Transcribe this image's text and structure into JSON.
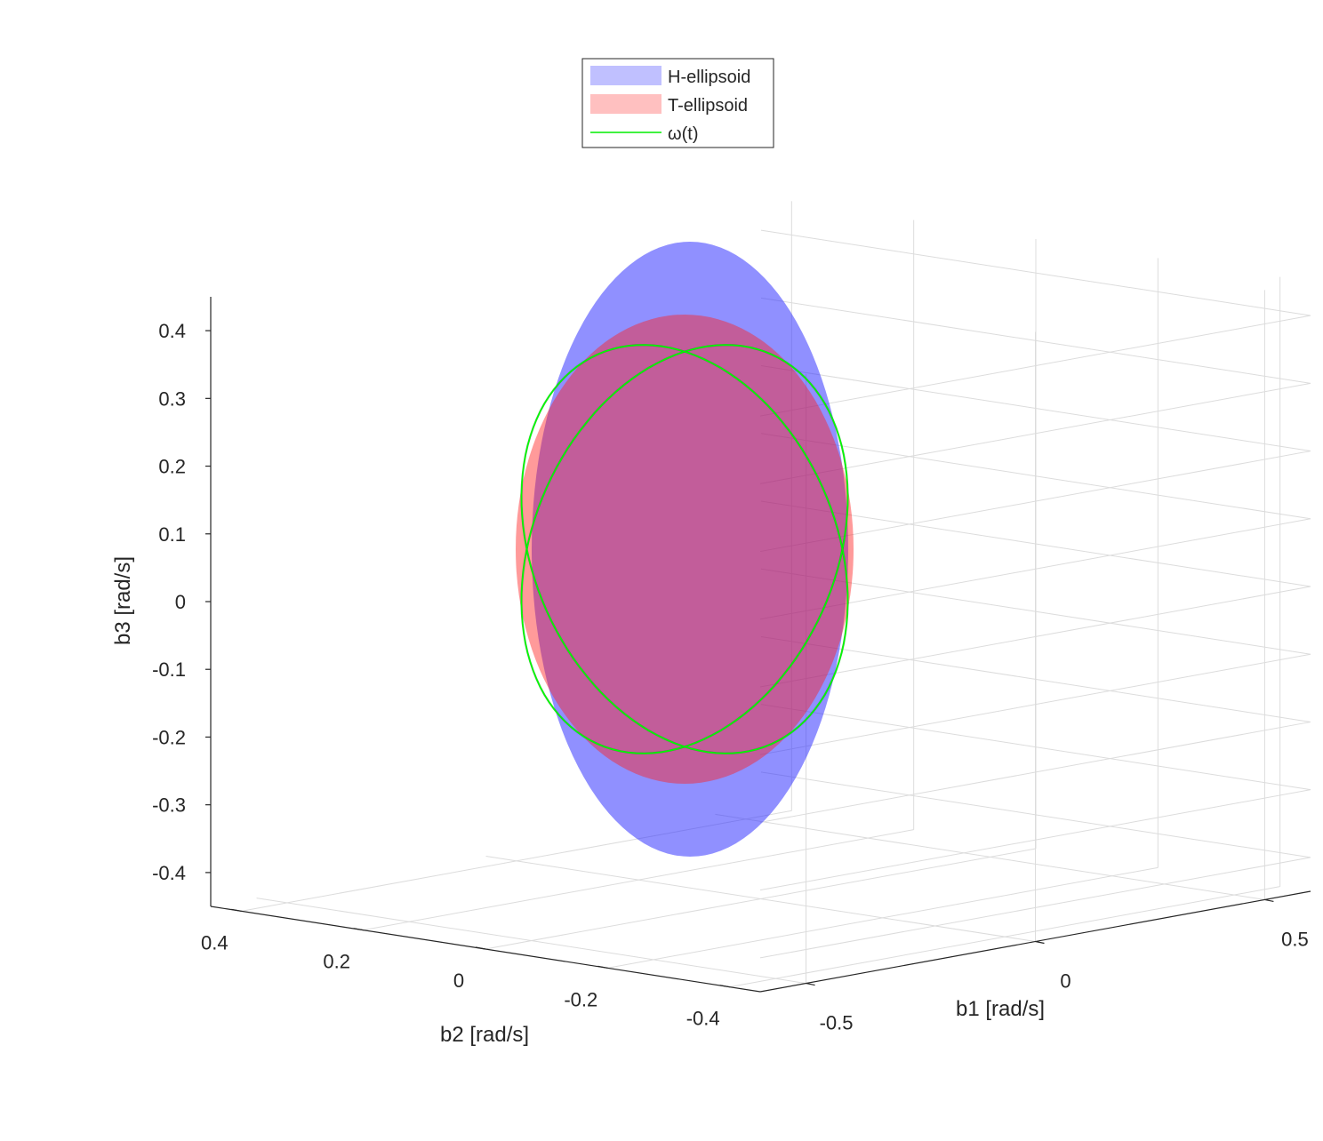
{
  "chart_data": {
    "type": "3d-surface",
    "title": "",
    "xlabel": "b1 [rad/s]",
    "ylabel": "b2 [rad/s]",
    "zlabel": "b3 [rad/s]",
    "xlim": [
      -0.6,
      0.6
    ],
    "ylim": [
      -0.45,
      0.45
    ],
    "zlim": [
      -0.45,
      0.45
    ],
    "x_ticks": [
      "-0.5",
      "0",
      "0.5"
    ],
    "y_ticks": [
      "0.4",
      "0.2",
      "0",
      "-0.2",
      "-0.4"
    ],
    "z_ticks": [
      "0.4",
      "0.3",
      "0.2",
      "0.1",
      "0",
      "-0.1",
      "-0.2",
      "-0.3",
      "-0.4"
    ],
    "grid": true,
    "legend_position": "top-center",
    "legend": [
      {
        "label": "H-ellipsoid",
        "color": "#0000ff",
        "style": "patch"
      },
      {
        "label": "T-ellipsoid",
        "color": "#ff0000",
        "style": "patch"
      },
      {
        "label": "ω(t)",
        "color": "#00ff00",
        "style": "line"
      }
    ],
    "series": [
      {
        "name": "H-ellipsoid",
        "kind": "ellipsoid",
        "center": [
          0,
          0,
          0
        ],
        "semi_axes_b2_b3": [
          0.23,
          0.46
        ]
      },
      {
        "name": "T-ellipsoid",
        "kind": "ellipsoid",
        "center": [
          0,
          0,
          0
        ],
        "semi_axes_b2_b3": [
          0.25,
          0.35
        ]
      },
      {
        "name": "ω(t)",
        "kind": "polhode-curve",
        "color": "#00ff00"
      }
    ]
  }
}
